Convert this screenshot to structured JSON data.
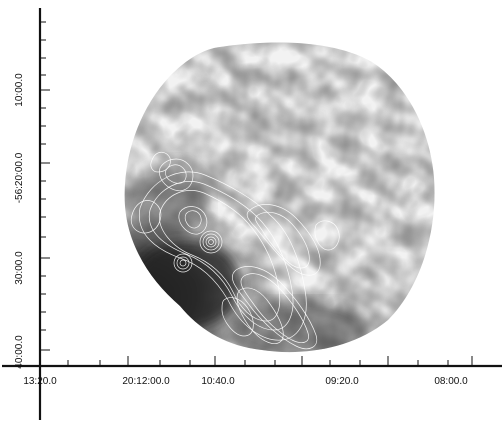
{
  "figure": {
    "x_axis": {
      "tick_labels": [
        "13:20.0",
        "20:12:00.0",
        "10:40.0",
        "09:20.0",
        "08:00.0"
      ]
    },
    "y_axis": {
      "tick_labels": [
        "10:00.0",
        "-56:20:00.0",
        "30:00.0",
        "40:00.0"
      ]
    },
    "colors": {
      "image_background": "#ffffff",
      "map_light": "#ececec",
      "map_dark": "#1e1e1e",
      "contours": "#ffffff",
      "axes": "#111111"
    }
  }
}
